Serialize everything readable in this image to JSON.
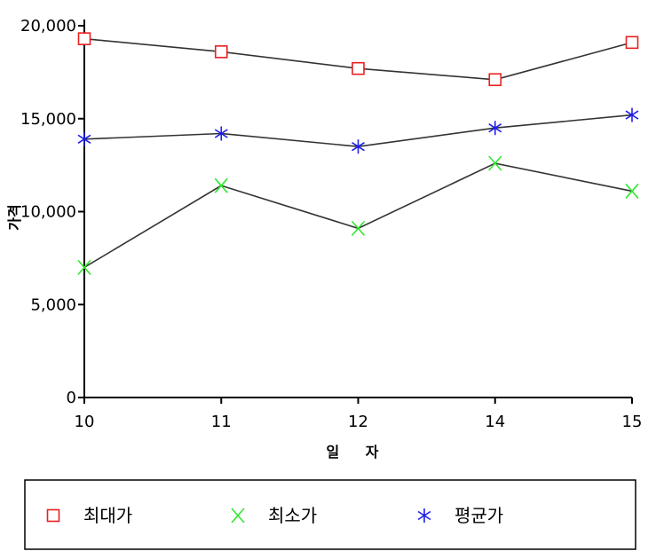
{
  "chart_data": {
    "type": "line",
    "title": "",
    "xlabel": "일 자",
    "ylabel": "가격",
    "categories": [
      "10",
      "11",
      "12",
      "14",
      "15"
    ],
    "yticks": [
      "0",
      "5,000",
      "10,000",
      "15,000",
      "20,000"
    ],
    "ytick_values": [
      0,
      5000,
      10000,
      15000,
      20000
    ],
    "ylim": [
      0,
      20000
    ],
    "grid": false,
    "legend_position": "bottom",
    "series": [
      {
        "name": "최대가",
        "values": [
          19300,
          18600,
          17700,
          17100,
          19100
        ],
        "marker": "square",
        "color": "#e8201f"
      },
      {
        "name": "최소가",
        "values": [
          7000,
          11400,
          9100,
          12600,
          11100
        ],
        "marker": "x",
        "color": "#2ee82e"
      },
      {
        "name": "평균가",
        "values": [
          13900,
          14200,
          13500,
          14500,
          15200
        ],
        "marker": "asterisk",
        "color": "#1f1fe8"
      }
    ]
  }
}
